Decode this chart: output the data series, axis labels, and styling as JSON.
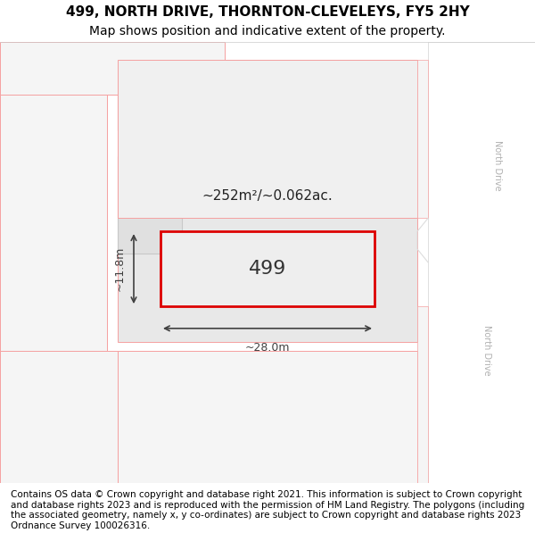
{
  "title": "499, NORTH DRIVE, THORNTON-CLEVELEYS, FY5 2HY",
  "subtitle": "Map shows position and indicative extent of the property.",
  "footer": "Contains OS data © Crown copyright and database right 2021. This information is subject to Crown copyright and database rights 2023 and is reproduced with the permission of HM Land Registry. The polygons (including the associated geometry, namely x, y co-ordinates) are subject to Crown copyright and database rights 2023 Ordnance Survey 100026316.",
  "bg_color": "#f5f5f5",
  "map_bg": "#f0f0f0",
  "road_color": "#ffffff",
  "road_label_color": "#b0b0b0",
  "building_fill": "#e0e0e0",
  "building_outline": "#c8c8c8",
  "highlight_fill": "#e8e8e8",
  "highlight_outline": "#f5a0a0",
  "target_outline": "#dd0000",
  "target_fill": "#e8e8e8",
  "dim_color": "#404040",
  "area_text": "~252m²/~0.062ac.",
  "property_label": "499",
  "dim_width": "~28.0m",
  "dim_height": "~11.8m",
  "map_xlim": [
    0,
    1
  ],
  "map_ylim": [
    0,
    1
  ],
  "title_fontsize": 11,
  "subtitle_fontsize": 10,
  "footer_fontsize": 7.5
}
